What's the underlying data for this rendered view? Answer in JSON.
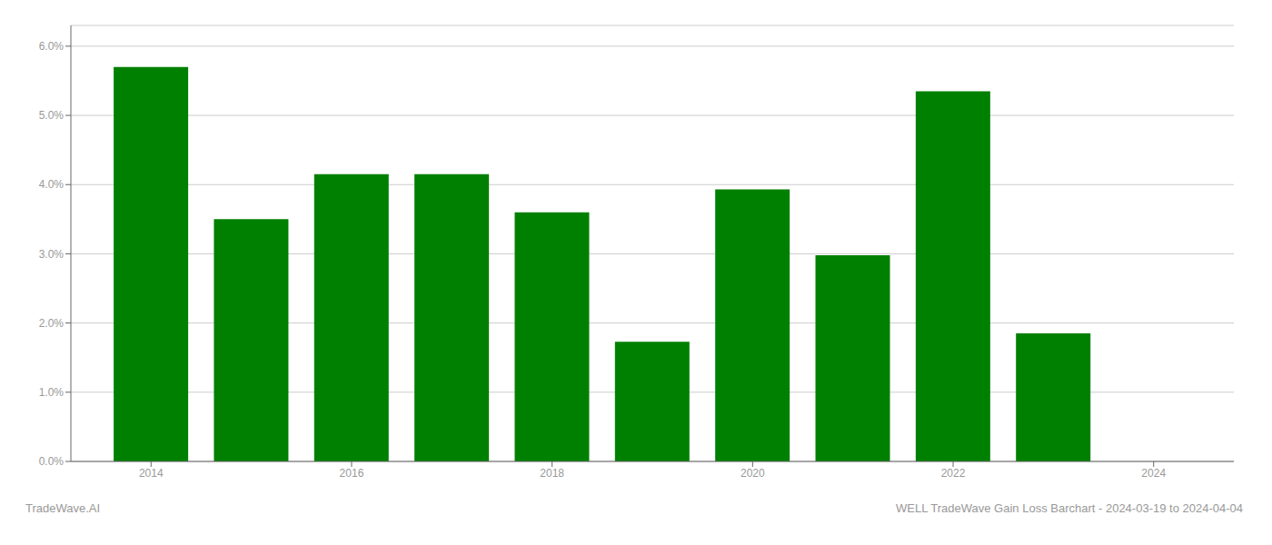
{
  "chart_data": {
    "type": "bar",
    "x": [
      2014,
      2015,
      2016,
      2017,
      2018,
      2019,
      2020,
      2021,
      2022,
      2023
    ],
    "values": [
      0.057,
      0.035,
      0.0415,
      0.0415,
      0.036,
      0.0173,
      0.0393,
      0.0298,
      0.0535,
      0.0185
    ],
    "color": "#008000",
    "xlim": [
      2013.2,
      2024.8
    ],
    "xticks": [
      2014,
      2016,
      2018,
      2020,
      2022,
      2024
    ],
    "ylim": [
      0,
      0.063
    ],
    "yticks": [
      {
        "value": 0,
        "label": "0.0%"
      },
      {
        "value": 0.01,
        "label": "1.0%"
      },
      {
        "value": 0.02,
        "label": "2.0%"
      },
      {
        "value": 0.03,
        "label": "3.0%"
      },
      {
        "value": 0.04,
        "label": "4.0%"
      },
      {
        "value": 0.05,
        "label": "5.0%"
      },
      {
        "value": 0.06,
        "label": "6.0%"
      }
    ],
    "grid": true,
    "annotations": [
      "TradeWave.AI",
      "WELL TradeWave Gain Loss Barchart - 2024-03-19 to 2024-04-04"
    ]
  }
}
